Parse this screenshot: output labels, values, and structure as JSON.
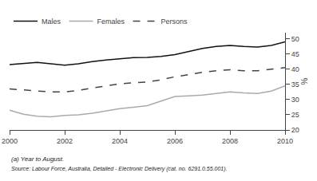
{
  "chart_data": {
    "type": "line",
    "ylabel": "%",
    "x": [
      2000,
      2000.5,
      2001,
      2001.5,
      2002,
      2002.5,
      2003,
      2003.5,
      2004,
      2004.5,
      2005,
      2005.5,
      2006,
      2006.5,
      2007,
      2007.5,
      2008,
      2008.5,
      2009,
      2009.5,
      2010
    ],
    "series": [
      {
        "name": "Males",
        "color": "#111111",
        "line_style": "solid",
        "values": [
          41.5,
          41.8,
          42.2,
          41.8,
          41.3,
          41.8,
          42.5,
          43.0,
          43.5,
          43.8,
          43.9,
          44.2,
          44.8,
          45.8,
          46.8,
          47.5,
          47.8,
          47.5,
          47.3,
          47.8,
          49.0
        ]
      },
      {
        "name": "Females",
        "color": "#aaaaaa",
        "line_style": "solid",
        "values": [
          26.5,
          25.2,
          24.5,
          24.3,
          24.8,
          25.0,
          25.5,
          26.2,
          27.0,
          27.5,
          28.0,
          29.5,
          31.0,
          31.2,
          31.5,
          32.0,
          32.5,
          32.2,
          32.0,
          32.8,
          34.5
        ]
      },
      {
        "name": "Persons",
        "color": "#444444",
        "line_style": "dashed",
        "values": [
          33.5,
          33.2,
          32.8,
          32.5,
          32.5,
          33.0,
          33.8,
          34.5,
          35.2,
          35.5,
          35.8,
          36.5,
          37.5,
          38.2,
          39.0,
          39.5,
          39.8,
          39.5,
          39.5,
          40.0,
          40.5
        ]
      }
    ],
    "xlim": [
      2000,
      2010
    ],
    "xticks": [
      2000,
      2002,
      2004,
      2006,
      2008,
      2010
    ],
    "ylim": [
      20,
      52
    ],
    "yticks": [
      20,
      25,
      30,
      35,
      40,
      45,
      50
    ],
    "grid": false,
    "legend": "upper left",
    "annotations": [
      "(a) Year to August.",
      "Source: Labour Force, Australia, Detailed - Electronic Delivery (cat. no. 6291.0.55.001)."
    ]
  }
}
